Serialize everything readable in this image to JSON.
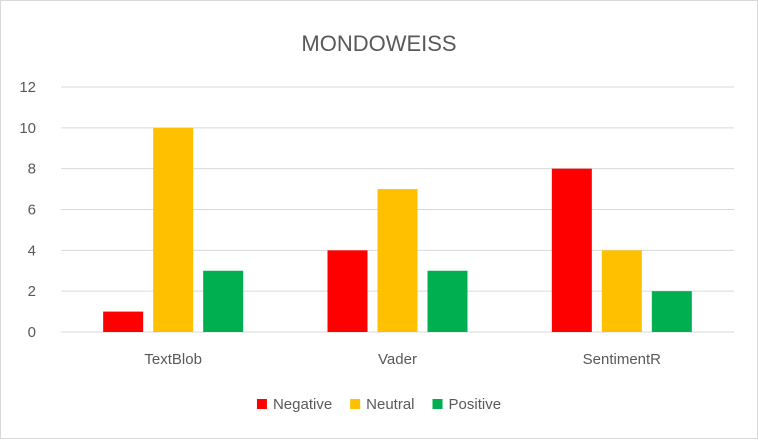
{
  "chart_data": {
    "type": "bar",
    "title": "MONDOWEISS",
    "categories": [
      "TextBlob",
      "Vader",
      "SentimentR"
    ],
    "series": [
      {
        "name": "Negative",
        "values": [
          1,
          4,
          8
        ],
        "color": "#ff0000"
      },
      {
        "name": "Neutral",
        "values": [
          10,
          7,
          4
        ],
        "color": "#ffc000"
      },
      {
        "name": "Positive",
        "values": [
          3,
          3,
          2
        ],
        "color": "#00b050"
      }
    ],
    "ylim": [
      0,
      12
    ],
    "yticks": [
      0,
      2,
      4,
      6,
      8,
      10,
      12
    ],
    "grid": true,
    "legend_position": "bottom"
  }
}
